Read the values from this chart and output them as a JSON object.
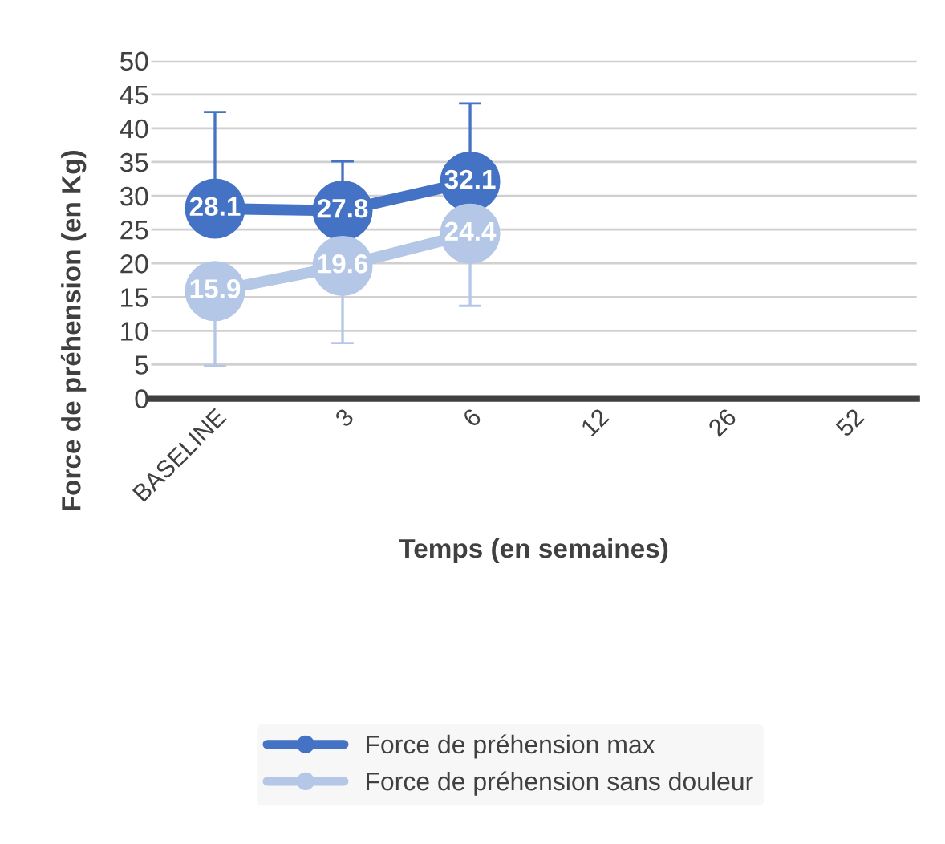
{
  "chart_data": {
    "type": "line",
    "xlabel": "Temps (en semaines)",
    "ylabel": "Force de préhension (en Kg)",
    "categories": [
      "BASELINE",
      "3",
      "6",
      "12",
      "26",
      "52"
    ],
    "series": [
      {
        "name": "Force de préhension max",
        "color": "#4472c4",
        "values": [
          28.1,
          27.8,
          32.1,
          null,
          null,
          null
        ],
        "errors": [
          [
            28.1,
            42.4
          ],
          [
            27.8,
            35.1
          ],
          [
            32.1,
            43.7
          ],
          null,
          null,
          null
        ]
      },
      {
        "name": "Force de préhension sans douleur",
        "color": "#b4c7e7",
        "values": [
          15.9,
          19.6,
          24.4,
          null,
          null,
          null
        ],
        "errors": [
          [
            4.8,
            15.9
          ],
          [
            8.2,
            19.6
          ],
          [
            13.7,
            24.4
          ],
          null,
          null,
          null
        ]
      }
    ],
    "ylim": [
      0,
      50
    ],
    "yticks": [
      0,
      5,
      10,
      15,
      20,
      25,
      30,
      35,
      40,
      45,
      50
    ],
    "grid": "y",
    "legend": "bottom",
    "marker": "circle",
    "line_style": "solid",
    "data_labels": true
  }
}
